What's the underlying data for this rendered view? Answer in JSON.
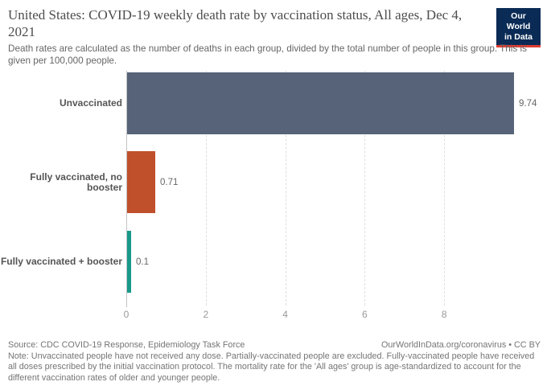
{
  "header": {
    "title": "United States: COVID-19 weekly death rate by vaccination status, All ages, Dec 4, 2021",
    "subtitle": "Death rates are calculated as the number of deaths in each group, divided by the total number of people in this group. This is given per 100,000 people.",
    "logo": {
      "line1": "Our World",
      "line2": "in Data"
    }
  },
  "chart_data": {
    "type": "bar",
    "orientation": "horizontal",
    "title": "United States: COVID-19 weekly death rate by vaccination status, All ages, Dec 4, 2021",
    "categories": [
      "Unvaccinated",
      "Fully vaccinated, no booster",
      "Fully vaccinated + booster"
    ],
    "values": [
      9.74,
      0.71,
      0.1
    ],
    "value_labels": [
      "9.74",
      "0.71",
      "0.1"
    ],
    "bar_colors": [
      "#566378",
      "#bf502b",
      "#18998a"
    ],
    "x_ticks": [
      "0",
      "2",
      "4",
      "6",
      "8"
    ],
    "x_tick_values": [
      0,
      2,
      4,
      6,
      8
    ],
    "xlim": [
      0,
      10.3
    ],
    "grid": true,
    "xlabel": "",
    "ylabel": ""
  },
  "footer": {
    "source": "Source: CDC COVID-19 Response, Epidemiology Task Force",
    "attribution": "OurWorldInData.org/coronavirus • CC BY",
    "note": "Note: Unvaccinated people have not received any dose. Partially-vaccinated people are excluded. Fully-vaccinated people have received all doses prescribed by the initial vaccination protocol. The mortality rate for the 'All ages' group is age-standardized to account for the different vaccination rates of older and younger people."
  },
  "colors": {
    "logo_background": "#0a2b55",
    "logo_stripe": "#dd3d32",
    "axis_line": "#c4c4c4",
    "gridline": "#dedede"
  }
}
